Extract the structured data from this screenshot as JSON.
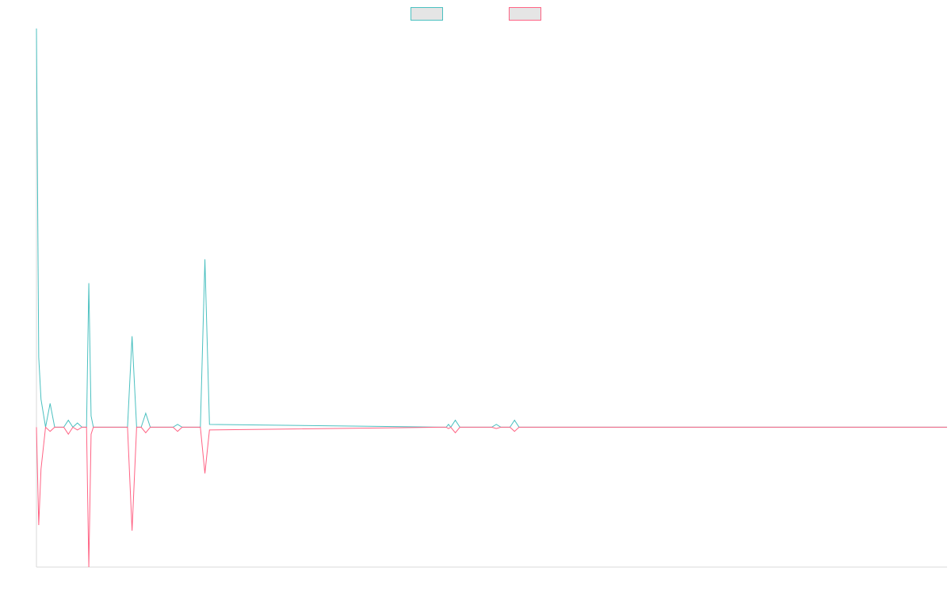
{
  "chart_data": {
    "type": "line",
    "title": "",
    "xlabel": "",
    "ylabel": "",
    "legend_position": "top-center",
    "grid": false,
    "ylim": [
      -1.0,
      2.85
    ],
    "xlim": [
      0,
      200
    ],
    "x": [
      0,
      0.5,
      1,
      2,
      3,
      4,
      5,
      6,
      7,
      8,
      9,
      10,
      11,
      11.5,
      12,
      12.5,
      13,
      14,
      20,
      21,
      22,
      23,
      24,
      25,
      26,
      30,
      31,
      32,
      33,
      36,
      37,
      38,
      89,
      90,
      90.5,
      91,
      92,
      93,
      94,
      95,
      96,
      97,
      98,
      99,
      100,
      101,
      102,
      104,
      105,
      106,
      107,
      108,
      140,
      141,
      142,
      200
    ],
    "series": [
      {
        "name": "",
        "color": "#4bc0c0",
        "values": [
          2.85,
          0.5,
          0.2,
          0.0,
          0.17,
          0.0,
          0.0,
          0.0,
          0.05,
          0.0,
          0.03,
          0.0,
          0.0,
          1.03,
          0.08,
          0.0,
          0.0,
          0.0,
          0.0,
          0.65,
          0.0,
          0.0,
          0.1,
          0.0,
          0.0,
          0.0,
          0.02,
          0.0,
          0.0,
          0.0,
          1.2,
          0.02,
          0.0,
          0.0,
          0.02,
          0.0,
          0.05,
          0.0,
          0.0,
          0.0,
          0.0,
          0.0,
          0.0,
          0.0,
          0.0,
          0.02,
          0.0,
          0.0,
          0.05,
          0.0,
          0.0,
          0.0,
          0.0,
          0.0,
          0.0,
          0.0
        ]
      },
      {
        "name": "",
        "color": "#ff6384",
        "values": [
          0.0,
          -0.7,
          -0.3,
          0.0,
          -0.03,
          0.0,
          0.0,
          0.0,
          -0.05,
          0.0,
          -0.02,
          0.0,
          0.0,
          -1.0,
          -0.05,
          0.0,
          0.0,
          0.0,
          0.0,
          -0.74,
          0.0,
          0.0,
          -0.04,
          0.0,
          0.0,
          0.0,
          -0.03,
          0.0,
          0.0,
          0.0,
          -0.33,
          -0.02,
          0.0,
          0.0,
          -0.01,
          0.0,
          -0.04,
          0.0,
          0.0,
          0.0,
          0.0,
          0.0,
          0.0,
          0.0,
          0.0,
          -0.01,
          0.0,
          0.0,
          -0.03,
          0.0,
          0.0,
          0.0,
          0.0,
          0.0,
          0.0,
          0.0
        ]
      }
    ]
  }
}
